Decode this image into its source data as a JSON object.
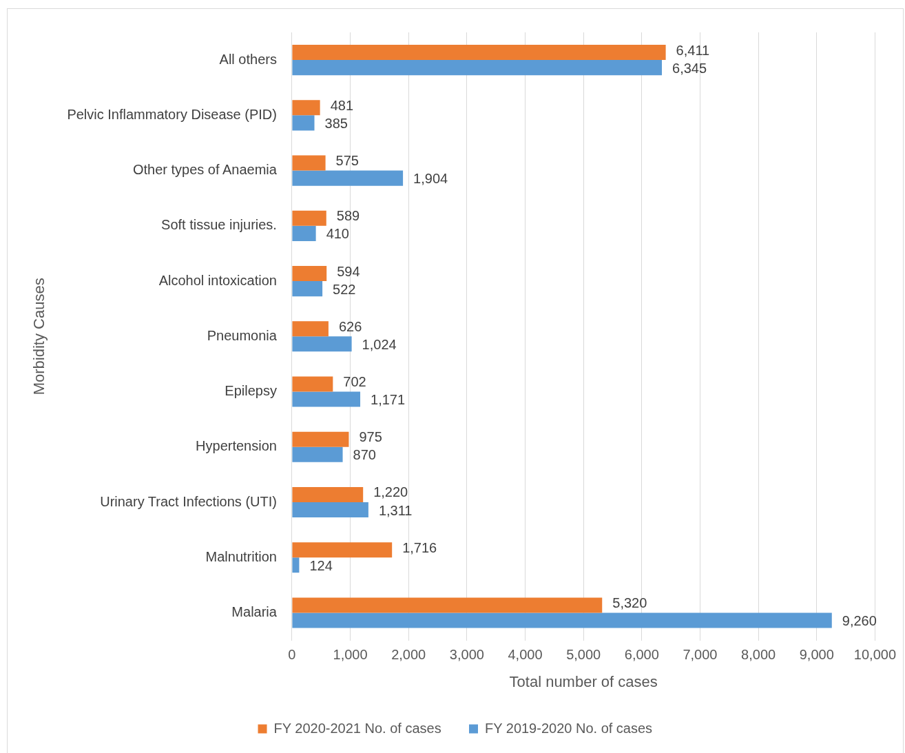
{
  "chart_data": {
    "type": "bar",
    "orientation": "horizontal",
    "xlabel": "Total number of cases",
    "ylabel": "Morbidity Causes",
    "categories": [
      "All others",
      "Pelvic Inflammatory Disease (PID)",
      "Other types of Anaemia",
      "Soft tissue injuries.",
      "Alcohol intoxication",
      "Pneumonia",
      "Epilepsy",
      "Hypertension",
      "Urinary Tract Infections (UTI)",
      "Malnutrition",
      "Malaria"
    ],
    "series": [
      {
        "name": "FY 2020-2021 No. of cases",
        "color": "#ed7d31",
        "values": [
          6411,
          481,
          575,
          589,
          594,
          626,
          702,
          975,
          1220,
          1716,
          5320
        ],
        "value_labels": [
          "6,411",
          "481",
          "575",
          "589",
          "594",
          "626",
          "702",
          "975",
          "1,220",
          "1,716",
          "5,320"
        ]
      },
      {
        "name": "FY 2019-2020 No. of cases",
        "color": "#5b9bd5",
        "values": [
          6345,
          385,
          1904,
          410,
          522,
          1024,
          1171,
          870,
          1311,
          124,
          9260
        ],
        "value_labels": [
          "6,345",
          "385",
          "1,904",
          "410",
          "522",
          "1,024",
          "1,171",
          "870",
          "1,311",
          "124",
          "9,260"
        ]
      }
    ],
    "xlim": [
      0,
      10000
    ],
    "xticks": [
      0,
      {
        "value": 1000,
        "label": "1,000"
      },
      {
        "value": 2000,
        "label": "2,000"
      },
      {
        "value": 3000,
        "label": "3,000"
      },
      {
        "value": 4000,
        "label": "4,000"
      },
      {
        "value": 5000,
        "label": "5,000"
      },
      {
        "value": 6000,
        "label": "6,000"
      },
      {
        "value": 7000,
        "label": "7,000"
      },
      {
        "value": 8000,
        "label": "8,000"
      },
      {
        "value": 9000,
        "label": "9,000"
      },
      {
        "value": 10000,
        "label": "10,000"
      }
    ],
    "grid": "x",
    "legend": "bottom"
  }
}
